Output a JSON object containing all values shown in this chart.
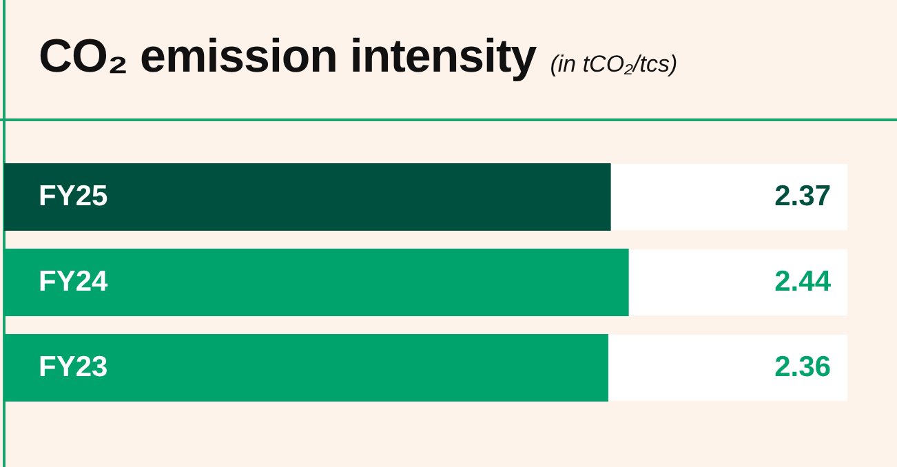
{
  "chart_data": {
    "type": "bar",
    "orientation": "horizontal",
    "title": "CO₂ emission intensity",
    "subtitle": "(in tCO₂/tcs)",
    "categories": [
      "FY25",
      "FY24",
      "FY23"
    ],
    "values": [
      2.37,
      2.44,
      2.36
    ],
    "colors": [
      "#005040",
      "#00a36c",
      "#00a36c"
    ],
    "data_labels": true
  }
}
